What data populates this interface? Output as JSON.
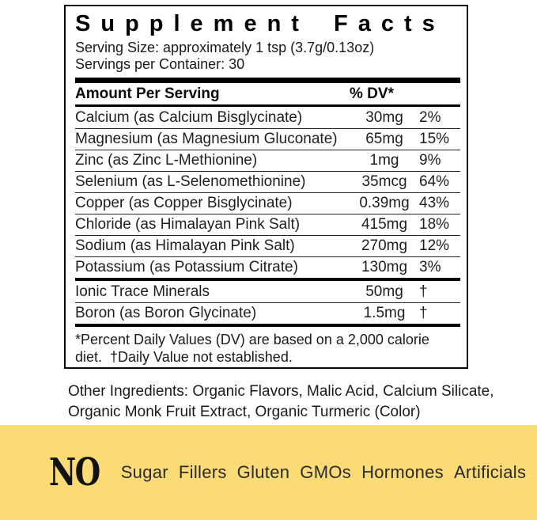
{
  "panel": {
    "title": "Supplement Facts",
    "serving_size": "Serving Size: approximately 1 tsp (3.7g/0.13oz)",
    "servings_per_container": "Servings per Container: 30",
    "columns": {
      "amount_header": "Amount Per Serving",
      "dv_header": "% DV*"
    },
    "rows": [
      {
        "name": "Calcium (as Calcium Bisglycinate)",
        "amount": "30mg",
        "dv": "2%"
      },
      {
        "name": "Magnesium (as Magnesium Gluconate)",
        "amount": "65mg",
        "dv": "15%"
      },
      {
        "name": "Zinc (as Zinc L-Methionine)",
        "amount": "1mg",
        "dv": "9%"
      },
      {
        "name": "Selenium (as L-Selenomethionine)",
        "amount": "35mcg",
        "dv": "64%"
      },
      {
        "name": "Copper (as Copper Bisglycinate)",
        "amount": "0.39mg",
        "dv": "43%"
      },
      {
        "name": "Chloride (as Himalayan Pink Salt)",
        "amount": "415mg",
        "dv": "18%"
      },
      {
        "name": "Sodium (as Himalayan Pink Salt)",
        "amount": "270mg",
        "dv": "12%"
      },
      {
        "name": "Potassium (as Potassium Citrate)",
        "amount": "130mg",
        "dv": "3%"
      }
    ],
    "extra_rows": [
      {
        "name": "Ionic Trace Minerals",
        "amount": "50mg",
        "dv": "†"
      },
      {
        "name": "Boron (as Boron Glycinate)",
        "amount": "1.5mg",
        "dv": "†"
      }
    ],
    "footnote": "*Percent Daily Values (DV) are based on a 2,000 calorie diet.  †Daily Value not established."
  },
  "other_ingredients": "Other Ingredients: Organic Flavors, Malic Acid, Calcium Silicate, Organic Monk Fruit Extract, Organic Turmeric (Color)",
  "banner": {
    "no_label": "NO",
    "items": [
      "Sugar",
      "Fillers",
      "Gluten",
      "GMOs",
      "Hormones",
      "Artificials"
    ]
  },
  "colors": {
    "banner_background": "#FBDB75",
    "text": "#1b1b1b"
  }
}
